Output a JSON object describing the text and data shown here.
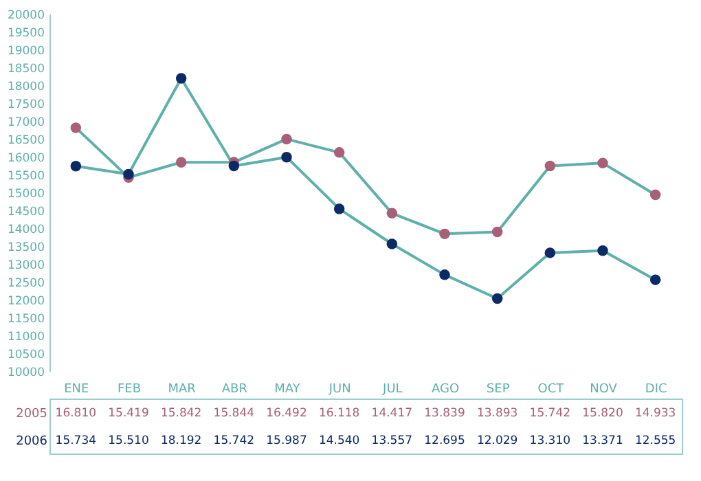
{
  "chart_data": {
    "type": "line",
    "categories": [
      "ENE",
      "FEB",
      "MAR",
      "ABR",
      "MAY",
      "JUN",
      "JUL",
      "AGO",
      "SEP",
      "OCT",
      "NOV",
      "DIC"
    ],
    "series": [
      {
        "name": "2005",
        "color": "#a86078",
        "values": [
          16810,
          15419,
          15842,
          15844,
          16492,
          16118,
          14417,
          13839,
          13893,
          15742,
          15820,
          14933
        ],
        "value_labels": [
          "16.810",
          "15.419",
          "15.842",
          "15.844",
          "16.492",
          "16.118",
          "14.417",
          "13.839",
          "13.893",
          "15.742",
          "15.820",
          "14.933"
        ]
      },
      {
        "name": "2006",
        "color": "#0e2a66",
        "values": [
          15734,
          15510,
          18192,
          15742,
          15987,
          14540,
          13557,
          12695,
          12029,
          13310,
          13371,
          12555
        ],
        "value_labels": [
          "15.734",
          "15.510",
          "18.192",
          "15.742",
          "15.987",
          "14.540",
          "13.557",
          "12.695",
          "12.029",
          "13.310",
          "13.371",
          "12.555"
        ]
      }
    ],
    "ylim": [
      10000,
      20000
    ],
    "yticks": [
      10000,
      10500,
      11000,
      11500,
      12000,
      12500,
      13000,
      13500,
      14000,
      14500,
      15000,
      15500,
      16000,
      16500,
      17000,
      17500,
      18000,
      18500,
      19000,
      19500,
      20000
    ],
    "marker": "circle",
    "line_style": "solid"
  }
}
